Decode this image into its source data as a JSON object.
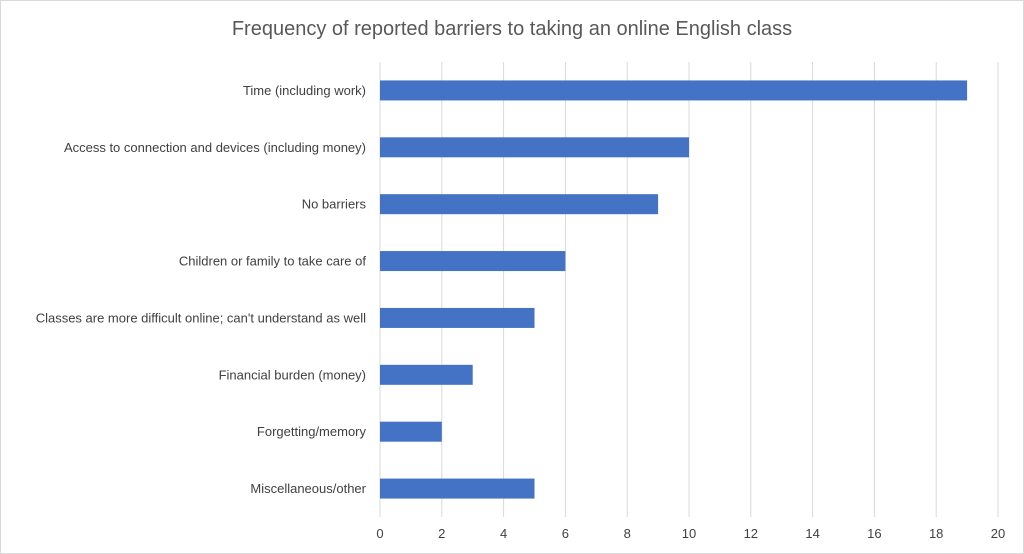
{
  "chart_data": {
    "type": "bar",
    "orientation": "horizontal",
    "title": "Frequency of reported barriers to taking an online English class",
    "xlabel": "",
    "ylabel": "",
    "categories": [
      "Time (including work)",
      "Access to connection and devices (including money)",
      "No barriers",
      "Children or family to take care of",
      "Classes are more difficult online; can't understand as well",
      "Financial burden (money)",
      "Forgetting/memory",
      "Miscellaneous/other"
    ],
    "values": [
      19,
      10,
      9,
      6,
      5,
      3,
      2,
      5
    ],
    "xlim": [
      0,
      20
    ],
    "x_ticks": [
      "0",
      "2",
      "4",
      "6",
      "8",
      "10",
      "12",
      "14",
      "16",
      "18",
      "20"
    ],
    "grid": "vertical",
    "legend": "none",
    "bar_color": "#4472C4"
  }
}
